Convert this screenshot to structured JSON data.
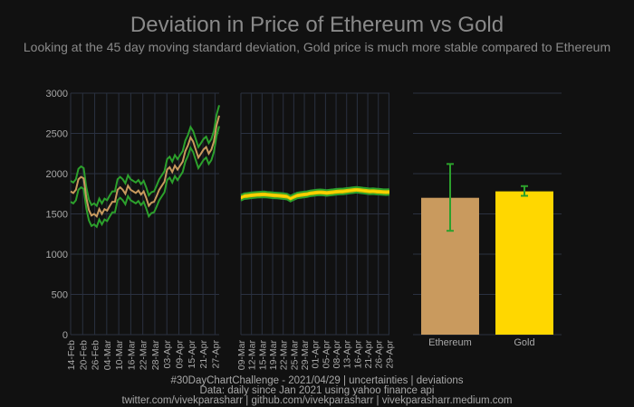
{
  "title": "Deviation in Price of Ethereum vs Gold",
  "subtitle": "Looking at the 45 day moving standard deviation, Gold price is much more stable compared to Ethereum",
  "footer": {
    "line1": "#30DayChartChallenge - 2021/04/29 | uncertainties | deviations",
    "line2": "Data: daily since Jan 2021 using yahoo finance api",
    "line3": "twitter.com/vivekparasharr | github.com/vivekparasharr | vivekparasharr.medium.com"
  },
  "colors": {
    "background": "#111111",
    "grid": "#2a3140",
    "axis_text": "#a8a8a8",
    "band": "#2ca02c",
    "ethereum": "#c99a5e",
    "gold": "#ffd700",
    "error_bar": "#2ca02c"
  },
  "chart_data": [
    {
      "type": "line",
      "name": "ethereum-deviation",
      "ylim": [
        0,
        3000
      ],
      "yticks": [
        0,
        500,
        1000,
        1500,
        2000,
        2500,
        3000
      ],
      "x_start": "14-Feb",
      "x_end": "30-Apr",
      "xticks": [
        "14-Feb",
        "20-Feb",
        "26-Feb",
        "04-Mar",
        "10-Mar",
        "16-Mar",
        "22-Mar",
        "28-Mar",
        "03-Apr",
        "09-Apr",
        "15-Apr",
        "21-Apr",
        "27-Apr"
      ],
      "price": [
        1780,
        1760,
        1800,
        1930,
        1960,
        1940,
        1700,
        1550,
        1480,
        1500,
        1470,
        1560,
        1500,
        1560,
        1540,
        1600,
        1650,
        1650,
        1800,
        1830,
        1800,
        1750,
        1850,
        1800,
        1780,
        1760,
        1790,
        1740,
        1780,
        1700,
        1600,
        1640,
        1650,
        1720,
        1800,
        1850,
        1900,
        2050,
        2080,
        2020,
        2100,
        2050,
        2100,
        2150,
        2280,
        2350,
        2450,
        2400,
        2300,
        2200,
        2250,
        2300,
        2330,
        2250,
        2300,
        2400,
        2600,
        2720
      ],
      "deviation": [
        130,
        130,
        130,
        130,
        130,
        130,
        130,
        130,
        130,
        130,
        130,
        130,
        130,
        130,
        130,
        130,
        130,
        130,
        130,
        130,
        130,
        130,
        130,
        130,
        130,
        130,
        130,
        130,
        130,
        130,
        130,
        130,
        130,
        130,
        130,
        130,
        130,
        130,
        130,
        130,
        130,
        130,
        130,
        130,
        130,
        130,
        130,
        130,
        130,
        130,
        130,
        130,
        130,
        130,
        130,
        130,
        130,
        130
      ]
    },
    {
      "type": "line",
      "name": "gold-deviation",
      "ylim": [
        0,
        3000
      ],
      "x_start": "09-Mar",
      "x_end": "30-Apr",
      "xticks": [
        "09-Mar",
        "12-Mar",
        "15-Mar",
        "19-Mar",
        "22-Mar",
        "25-Mar",
        "29-Mar",
        "01-Apr",
        "05-Apr",
        "08-Apr",
        "13-Apr",
        "16-Apr",
        "21-Apr",
        "26-Apr",
        "29-Apr"
      ],
      "price": [
        1700,
        1720,
        1725,
        1730,
        1735,
        1738,
        1740,
        1742,
        1738,
        1735,
        1730,
        1728,
        1725,
        1720,
        1715,
        1690,
        1710,
        1728,
        1735,
        1740,
        1745,
        1755,
        1760,
        1765,
        1768,
        1765,
        1760,
        1765,
        1770,
        1775,
        1778,
        1780,
        1785,
        1790,
        1795,
        1800,
        1795,
        1790,
        1785,
        1780,
        1782,
        1778,
        1775,
        1772,
        1770,
        1772
      ],
      "deviation": [
        35,
        35,
        35,
        35,
        35,
        35,
        35,
        35,
        35,
        35,
        35,
        35,
        35,
        35,
        35,
        35,
        35,
        35,
        35,
        35,
        35,
        35,
        35,
        35,
        35,
        35,
        35,
        35,
        35,
        35,
        35,
        35,
        35,
        35,
        35,
        35,
        35,
        35,
        35,
        35,
        35,
        35,
        35,
        35,
        35,
        35
      ]
    },
    {
      "type": "bar",
      "name": "mean-with-error",
      "ylim": [
        0,
        3000
      ],
      "categories": [
        "Ethereum",
        "Gold"
      ],
      "values": [
        1700,
        1780
      ],
      "error": [
        [
          410,
          420
        ],
        [
          55,
          65
        ]
      ]
    }
  ]
}
